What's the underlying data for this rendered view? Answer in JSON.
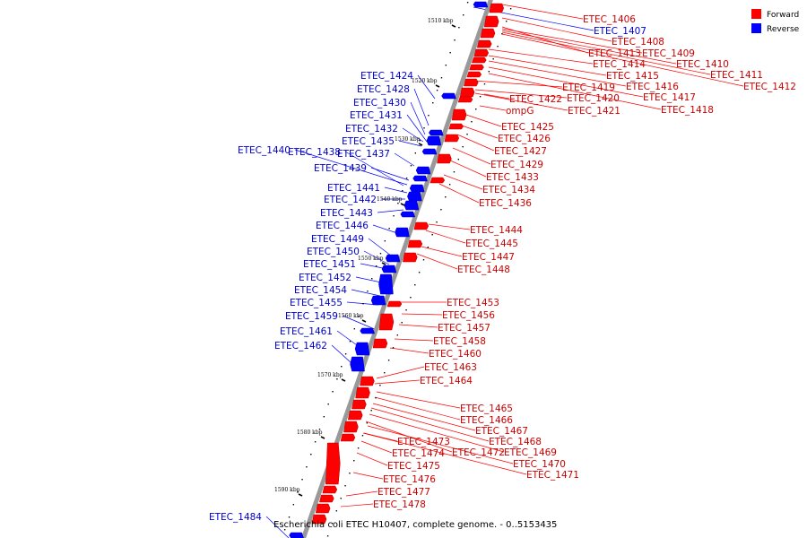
{
  "caption": "Escherichia coli ETEC H10407, complete genome. - 0..5153435",
  "colors": {
    "forward": "#ff0000",
    "forward_dark": "#b30000",
    "reverse": "#0000ff",
    "reverse_dark": "#0000aa",
    "forward_label": "#cc0000",
    "reverse_label": "#0000cc",
    "backbone": "#999999"
  },
  "legend": [
    {
      "label": "Forward",
      "strand": "forward"
    },
    {
      "label": "Reverse",
      "strand": "reverse"
    }
  ],
  "ticks": [
    "1510 kbp",
    "1520 kbp",
    "1530 kbp",
    "1540 kbp",
    "1550 kbp",
    "1560 kbp",
    "1570 kbp",
    "1580 kbp",
    "1590 kbp"
  ],
  "forward_labels": [
    "ETEC_1406",
    "ETEC_1408",
    "ETEC_1413",
    "ETEC_1409",
    "ETEC_1410",
    "ETEC_1411",
    "ETEC_1412",
    "ETEC_1414",
    "ETEC_1415",
    "ETEC_1416",
    "ETEC_1419",
    "ETEC_1417",
    "ETEC_1422",
    "ETEC_1420",
    "ETEC_1418",
    "ETEC_1421",
    "ompG",
    "ETEC_1425",
    "ETEC_1426",
    "ETEC_1427",
    "ETEC_1429",
    "ETEC_1433",
    "ETEC_1434",
    "ETEC_1436",
    "ETEC_1444",
    "ETEC_1445",
    "ETEC_1447",
    "ETEC_1448",
    "ETEC_1453",
    "ETEC_1456",
    "ETEC_1457",
    "ETEC_1458",
    "ETEC_1460",
    "ETEC_1463",
    "ETEC_1464",
    "ETEC_1465",
    "ETEC_1466",
    "ETEC_1467",
    "ETEC_1468",
    "ETEC_1473",
    "ETEC_1469",
    "ETEC_1474",
    "ETEC_1472",
    "ETEC_1470",
    "ETEC_1475",
    "ETEC_1471",
    "ETEC_1476",
    "ETEC_1477",
    "ETEC_1478"
  ],
  "reverse_labels": [
    "ETEC_1407",
    "ETEC_1424",
    "ETEC_1428",
    "ETEC_1430",
    "ETEC_1431",
    "ETEC_1432",
    "ETEC_1435",
    "ETEC_1440",
    "ETEC_1438",
    "ETEC_1437",
    "ETEC_1439",
    "ETEC_1441",
    "ETEC_1442",
    "ETEC_1443",
    "ETEC_1446",
    "ETEC_1449",
    "ETEC_1450",
    "ETEC_1451",
    "ETEC_1452",
    "ETEC_1454",
    "ETEC_1455",
    "ETEC_1459",
    "ETEC_1461",
    "ETEC_1462",
    "ETEC_1484"
  ]
}
